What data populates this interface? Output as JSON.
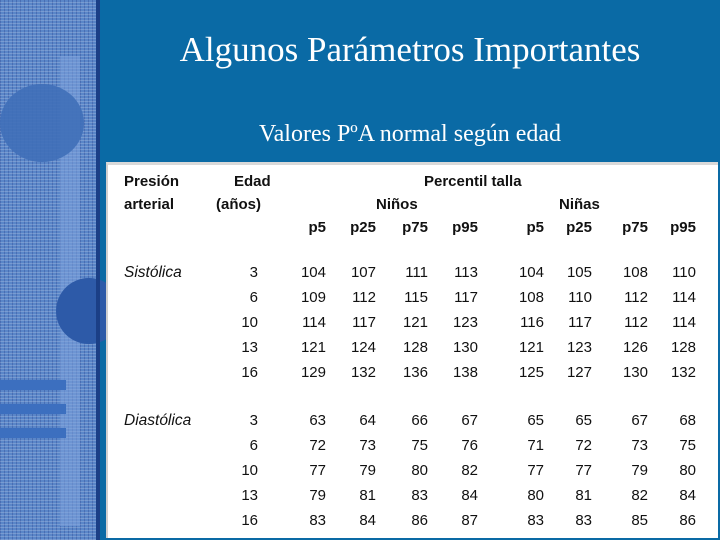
{
  "title": "Algunos Parámetros Importantes",
  "subtitle": "Valores PºA normal según edad",
  "table": {
    "col_presion": [
      "Presión",
      "arterial"
    ],
    "col_edad": [
      "Edad",
      "(años)"
    ],
    "percentil_label": "Percentil talla",
    "group_ninos": "Niños",
    "group_ninas": "Niñas",
    "percentiles": [
      "p5",
      "p25",
      "p75",
      "p95",
      "p5",
      "p25",
      "p75",
      "p95"
    ],
    "sections": [
      {
        "label": "Sistólica",
        "rows": [
          {
            "edad": "3",
            "values": [
              "104",
              "107",
              "111",
              "113",
              "104",
              "105",
              "108",
              "110"
            ]
          },
          {
            "edad": "6",
            "values": [
              "109",
              "112",
              "115",
              "117",
              "108",
              "110",
              "112",
              "114"
            ]
          },
          {
            "edad": "10",
            "values": [
              "114",
              "117",
              "121",
              "123",
              "116",
              "117",
              "112",
              "114"
            ]
          },
          {
            "edad": "13",
            "values": [
              "121",
              "124",
              "128",
              "130",
              "121",
              "123",
              "126",
              "128"
            ]
          },
          {
            "edad": "16",
            "values": [
              "129",
              "132",
              "136",
              "138",
              "125",
              "127",
              "130",
              "132"
            ]
          }
        ]
      },
      {
        "label": "Diastólica",
        "rows": [
          {
            "edad": "3",
            "values": [
              "63",
              "64",
              "66",
              "67",
              "65",
              "65",
              "67",
              "68"
            ]
          },
          {
            "edad": "6",
            "values": [
              "72",
              "73",
              "75",
              "76",
              "71",
              "72",
              "73",
              "75"
            ]
          },
          {
            "edad": "10",
            "values": [
              "77",
              "79",
              "80",
              "82",
              "77",
              "77",
              "79",
              "80"
            ]
          },
          {
            "edad": "13",
            "values": [
              "79",
              "81",
              "83",
              "84",
              "80",
              "81",
              "82",
              "84"
            ]
          },
          {
            "edad": "16",
            "values": [
              "83",
              "84",
              "86",
              "87",
              "83",
              "83",
              "85",
              "86"
            ]
          }
        ]
      }
    ]
  }
}
